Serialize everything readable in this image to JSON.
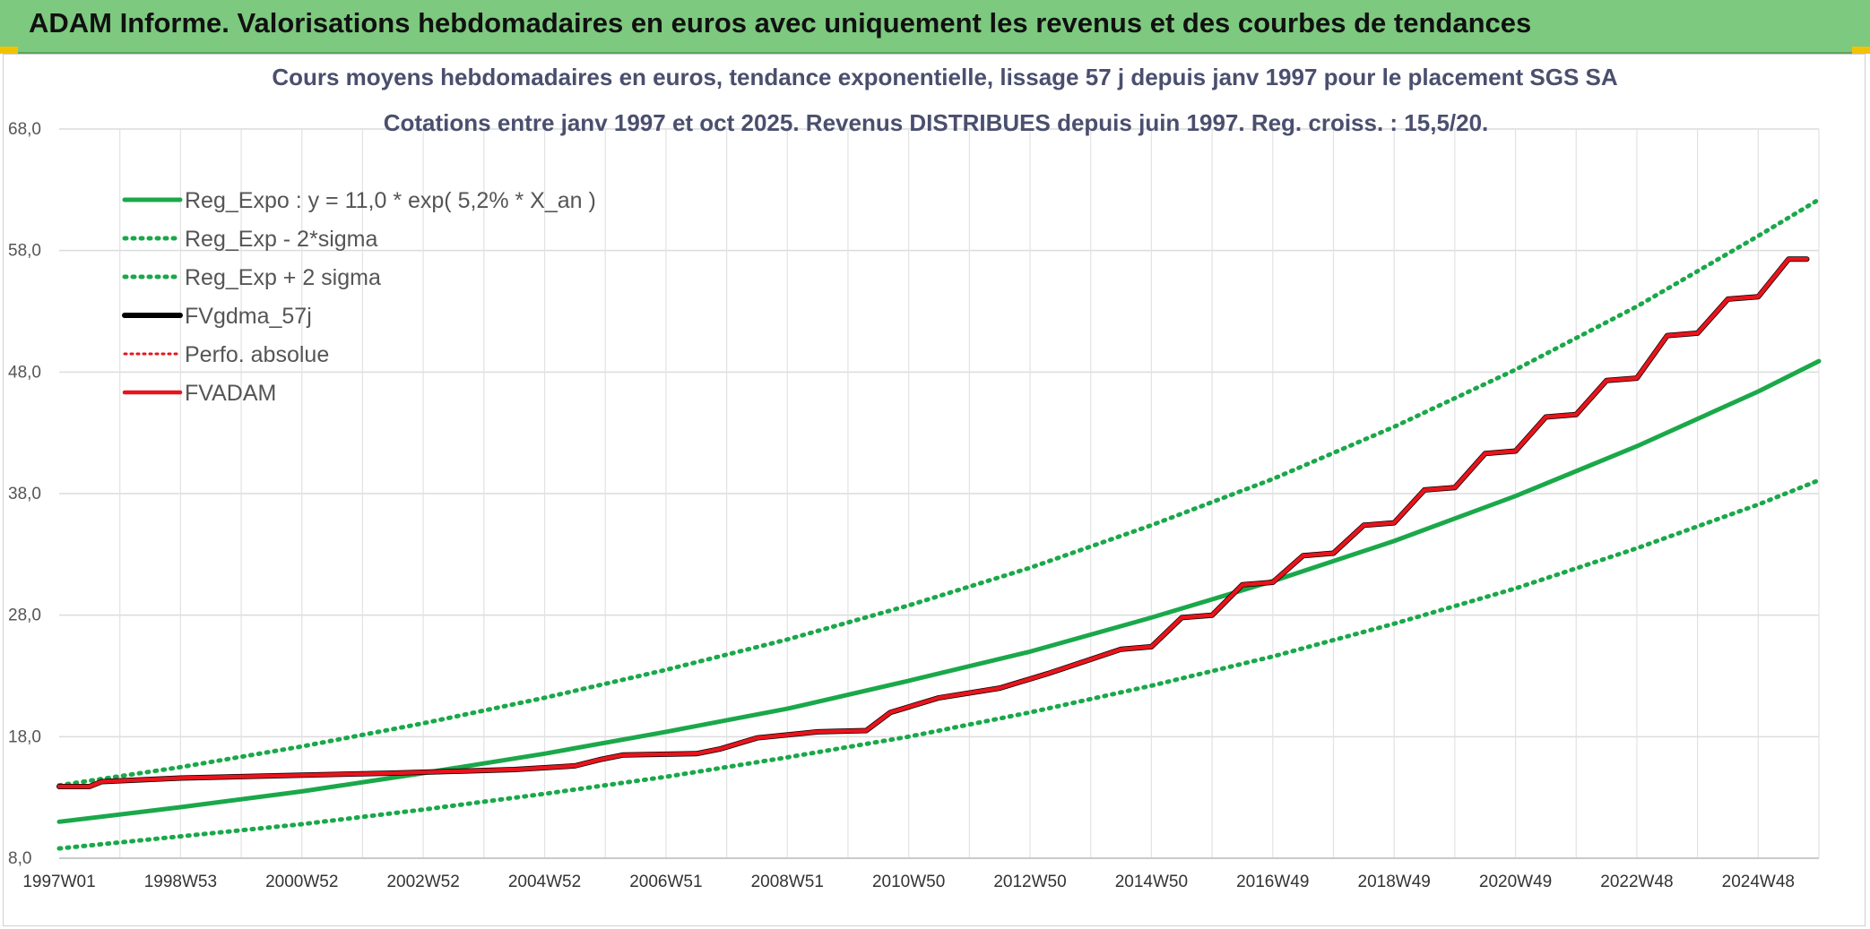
{
  "header": {
    "title": "ADAM Informe. Valorisations hebdomadaires en euros avec uniquement les revenus et des courbes de tendances"
  },
  "chart_data": {
    "type": "line",
    "title": "Cours moyens hebdomadaires en euros, tendance exponentielle, lissage 57 j depuis janv 1997 pour le placement SGS SA",
    "subtitle": "Cotations entre janv 1997 et oct 2025. Revenus DISTRIBUES depuis juin 1997. Reg. croiss. : 15,5/20.",
    "xlabel": "",
    "ylabel": "",
    "ylim": [
      8,
      68
    ],
    "yticks": [
      "8,0",
      "18,0",
      "28,0",
      "38,0",
      "48,0",
      "58,0",
      "68,0"
    ],
    "xlim": [
      1997.0,
      2026.0
    ],
    "xticks": [
      {
        "label": "1997W01",
        "x": 1997.0
      },
      {
        "label": "1998W53",
        "x": 1999.0
      },
      {
        "label": "2000W52",
        "x": 2001.0
      },
      {
        "label": "2002W52",
        "x": 2003.0
      },
      {
        "label": "2004W52",
        "x": 2005.0
      },
      {
        "label": "2006W51",
        "x": 2007.0
      },
      {
        "label": "2008W51",
        "x": 2009.0
      },
      {
        "label": "2010W50",
        "x": 2011.0
      },
      {
        "label": "2012W50",
        "x": 2013.0
      },
      {
        "label": "2014W50",
        "x": 2015.0
      },
      {
        "label": "2016W49",
        "x": 2017.0
      },
      {
        "label": "2018W49",
        "x": 2019.0
      },
      {
        "label": "2020W49",
        "x": 2021.0
      },
      {
        "label": "2022W48",
        "x": 2023.0
      },
      {
        "label": "2024W48",
        "x": 2025.0
      }
    ],
    "grid": true,
    "legend_position": "top-left",
    "series": [
      {
        "name": "Reg_Expo : y = 11,0 * exp( 5,2% *  X_an )",
        "color": "#1aa84a",
        "style": "solid",
        "x": [
          1997,
          1999,
          2001,
          2003,
          2005,
          2007,
          2009,
          2011,
          2013,
          2015,
          2017,
          2019,
          2021,
          2023,
          2025,
          2026
        ],
        "y": [
          11.0,
          12.2,
          13.5,
          15.0,
          16.6,
          18.4,
          20.3,
          22.6,
          25.0,
          27.8,
          30.8,
          34.1,
          37.8,
          41.9,
          46.4,
          48.9
        ]
      },
      {
        "name": "Reg_Exp - 2*sigma",
        "color": "#1aa84a",
        "style": "dotted",
        "x": [
          1997,
          1999,
          2001,
          2003,
          2005,
          2007,
          2009,
          2011,
          2013,
          2015,
          2017,
          2019,
          2021,
          2023,
          2025,
          2026
        ],
        "y": [
          8.8,
          9.8,
          10.8,
          12.0,
          13.3,
          14.7,
          16.3,
          18.0,
          20.0,
          22.2,
          24.6,
          27.3,
          30.2,
          33.5,
          37.1,
          39.1
        ]
      },
      {
        "name": "Reg_Exp + 2 sigma",
        "color": "#1aa84a",
        "style": "dotted",
        "x": [
          1997,
          1999,
          2001,
          2003,
          2005,
          2007,
          2009,
          2011,
          2013,
          2015,
          2017,
          2019,
          2021,
          2023,
          2025,
          2026
        ],
        "y": [
          14.0,
          15.5,
          17.2,
          19.1,
          21.2,
          23.5,
          26.0,
          28.8,
          31.9,
          35.4,
          39.2,
          43.5,
          48.2,
          53.4,
          59.2,
          62.2
        ]
      },
      {
        "name": "FVgdma_57j",
        "color": "#000000",
        "style": "solid",
        "x": [
          1997.0,
          1997.5,
          1997.7,
          1999.0,
          2000.7,
          2002.5,
          2004.5,
          2005.5,
          2005.9,
          2006.3,
          2007.5,
          2007.9,
          2008.5,
          2009.5,
          2010.3,
          2010.7,
          2011.5,
          2012.5,
          2013.3,
          2014.5,
          2015.0,
          2015.5,
          2016.0,
          2016.5,
          2017.0,
          2017.5,
          2018.0,
          2018.5,
          2019.0,
          2019.5,
          2020.0,
          2020.5,
          2021.0,
          2021.5,
          2022.0,
          2022.5,
          2023.0,
          2023.5,
          2024.0,
          2024.5,
          2025.0,
          2025.5,
          2025.8
        ],
        "y": [
          13.9,
          13.9,
          14.3,
          14.6,
          14.8,
          15.0,
          15.3,
          15.6,
          16.1,
          16.5,
          16.6,
          17.0,
          17.9,
          18.4,
          18.5,
          20.0,
          21.2,
          22.0,
          23.2,
          25.2,
          25.4,
          27.8,
          28.0,
          30.5,
          30.7,
          32.9,
          33.1,
          35.4,
          35.6,
          38.3,
          38.5,
          41.3,
          41.5,
          44.3,
          44.5,
          47.3,
          47.5,
          51.0,
          51.2,
          54.0,
          54.2,
          57.3,
          57.3
        ]
      },
      {
        "name": "Perfo. absolue",
        "color": "#e8141c",
        "style": "dotted",
        "x": [
          1997.0,
          1997.5,
          1997.7,
          1999.0,
          2000.7,
          2002.5,
          2004.5,
          2005.5,
          2005.9,
          2006.3,
          2007.5,
          2007.9,
          2008.5,
          2009.5,
          2010.3,
          2010.7,
          2011.5,
          2012.5,
          2013.3,
          2014.5,
          2015.0,
          2015.5,
          2016.0,
          2016.5,
          2017.0,
          2017.5,
          2018.0,
          2018.5,
          2019.0,
          2019.5,
          2020.0,
          2020.5,
          2021.0,
          2021.5,
          2022.0,
          2022.5,
          2023.0,
          2023.5,
          2024.0,
          2024.5,
          2025.0,
          2025.5,
          2025.8
        ],
        "y": [
          13.9,
          13.9,
          14.3,
          14.6,
          14.8,
          15.0,
          15.3,
          15.6,
          16.1,
          16.5,
          16.6,
          17.0,
          17.9,
          18.4,
          18.5,
          20.0,
          21.2,
          22.0,
          23.2,
          25.2,
          25.4,
          27.8,
          28.0,
          30.5,
          30.7,
          32.9,
          33.1,
          35.4,
          35.6,
          38.3,
          38.5,
          41.3,
          41.5,
          44.3,
          44.5,
          47.3,
          47.5,
          51.0,
          51.2,
          54.0,
          54.2,
          57.3,
          57.3
        ]
      },
      {
        "name": "FVADAM",
        "color": "#e8141c",
        "style": "solid",
        "x": [
          1997.0,
          1997.5,
          1997.7,
          1999.0,
          2000.7,
          2002.5,
          2004.5,
          2005.5,
          2005.9,
          2006.3,
          2007.5,
          2007.9,
          2008.5,
          2009.5,
          2010.3,
          2010.7,
          2011.5,
          2012.5,
          2013.3,
          2014.5,
          2015.0,
          2015.5,
          2016.0,
          2016.5,
          2017.0,
          2017.5,
          2018.0,
          2018.5,
          2019.0,
          2019.5,
          2020.0,
          2020.5,
          2021.0,
          2021.5,
          2022.0,
          2022.5,
          2023.0,
          2023.5,
          2024.0,
          2024.5,
          2025.0,
          2025.5,
          2025.8
        ],
        "y": [
          13.9,
          13.9,
          14.3,
          14.6,
          14.8,
          15.0,
          15.3,
          15.6,
          16.1,
          16.5,
          16.6,
          17.0,
          17.9,
          18.4,
          18.5,
          20.0,
          21.2,
          22.0,
          23.2,
          25.2,
          25.4,
          27.8,
          28.0,
          30.5,
          30.7,
          32.9,
          33.1,
          35.4,
          35.6,
          38.3,
          38.5,
          41.3,
          41.5,
          44.3,
          44.5,
          47.3,
          47.5,
          51.0,
          51.2,
          54.0,
          54.2,
          57.3,
          57.3
        ]
      }
    ]
  }
}
